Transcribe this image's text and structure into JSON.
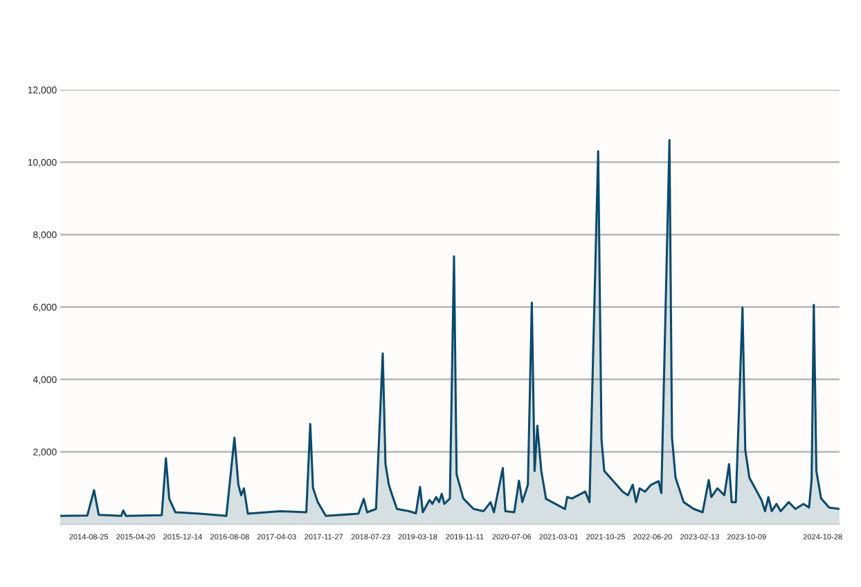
{
  "chart_data": {
    "type": "area",
    "color": "#0b4a6b",
    "grid": "y",
    "xlim": [
      "2014-04-03",
      "2025-01-21"
    ],
    "xticks": [
      "2014-08-25",
      "2015-04-20",
      "2015-12-14",
      "2016-08-08",
      "2017-04-03",
      "2017-11-27",
      "2018-07-23",
      "2019-03-18",
      "2019-11-11",
      "2020-07-06",
      "2021-03-01",
      "2021-10-25",
      "2022-06-20",
      "2023-02-13",
      "2023-10-09",
      "2024-10-28"
    ],
    "ylim": [
      0,
      12000
    ],
    "yticks": [
      {
        "value": 2000,
        "label": "2,000"
      },
      {
        "value": 4000,
        "label": "4,000"
      },
      {
        "value": 6000,
        "label": "6,000"
      },
      {
        "value": 8000,
        "label": "8,000"
      },
      {
        "value": 10000,
        "label": "10,000"
      },
      {
        "value": 12000,
        "label": "12,000"
      }
    ],
    "x": [
      "2014-04-03",
      "2014-08-18",
      "2014-09-21",
      "2014-10-15",
      "2015-02-06",
      "2015-02-16",
      "2015-03-02",
      "2015-08-30",
      "2015-09-20",
      "2015-10-07",
      "2015-11-07",
      "2016-03-06",
      "2016-07-22",
      "2016-09-01",
      "2016-09-21",
      "2016-10-05",
      "2016-10-19",
      "2016-11-08",
      "2017-04-22",
      "2017-08-31",
      "2017-09-20",
      "2017-10-04",
      "2017-10-28",
      "2017-12-08",
      "2018-05-22",
      "2018-06-18",
      "2018-07-05",
      "2018-08-19",
      "2018-09-22",
      "2018-10-06",
      "2018-10-23",
      "2018-11-09",
      "2018-12-03",
      "2019-02-03",
      "2019-03-09",
      "2019-03-30",
      "2019-04-13",
      "2019-05-17",
      "2019-05-31",
      "2019-06-20",
      "2019-07-04",
      "2019-07-18",
      "2019-07-31",
      "2019-08-28",
      "2019-09-18",
      "2019-10-01",
      "2019-11-04",
      "2019-12-26",
      "2020-02-15",
      "2020-03-21",
      "2020-04-07",
      "2020-05-22",
      "2020-06-04",
      "2020-07-19",
      "2020-08-12",
      "2020-08-29",
      "2020-09-26",
      "2020-10-16",
      "2020-10-30",
      "2020-11-13",
      "2020-12-03",
      "2020-12-27",
      "2021-04-02",
      "2021-04-13",
      "2021-05-07",
      "2021-07-14",
      "2021-08-04",
      "2021-09-17",
      "2021-10-04",
      "2021-10-18",
      "2021-11-28",
      "2022-01-19",
      "2022-02-15",
      "2022-03-11",
      "2022-03-28",
      "2022-04-15",
      "2022-05-12",
      "2022-06-12",
      "2022-07-20",
      "2022-08-03",
      "2022-09-13",
      "2022-09-26",
      "2022-10-14",
      "2022-11-24",
      "2023-01-14",
      "2023-02-28",
      "2023-03-31",
      "2023-04-13",
      "2023-05-14",
      "2023-06-18",
      "2023-07-12",
      "2023-07-25",
      "2023-08-15",
      "2023-09-18",
      "2023-10-02",
      "2023-10-23",
      "2023-12-23",
      "2024-01-10",
      "2024-01-27",
      "2024-02-13",
      "2024-03-08",
      "2024-03-29",
      "2024-05-09",
      "2024-06-12",
      "2024-07-23",
      "2024-08-20",
      "2024-09-02",
      "2024-09-13",
      "2024-09-26",
      "2024-10-20",
      "2024-11-30",
      "2025-01-21"
    ],
    "values": [
      230,
      240,
      940,
      260,
      230,
      380,
      230,
      250,
      1820,
      700,
      330,
      290,
      230,
      2390,
      1090,
      800,
      990,
      290,
      360,
      330,
      2770,
      1000,
      610,
      230,
      290,
      700,
      330,
      420,
      4720,
      1660,
      1090,
      800,
      420,
      360,
      300,
      1030,
      330,
      670,
      560,
      750,
      610,
      840,
      560,
      710,
      7400,
      1380,
      710,
      420,
      360,
      610,
      330,
      1550,
      360,
      330,
      1200,
      610,
      1090,
      6120,
      1470,
      2720,
      1470,
      700,
      420,
      750,
      710,
      900,
      610,
      10300,
      2330,
      1470,
      1220,
      900,
      800,
      1090,
      610,
      990,
      900,
      1090,
      1190,
      860,
      10610,
      2390,
      1280,
      610,
      420,
      330,
      1220,
      750,
      990,
      800,
      1660,
      610,
      610,
      5980,
      2050,
      1280,
      670,
      360,
      750,
      360,
      560,
      360,
      610,
      420,
      560,
      460,
      1240,
      6060,
      1470,
      710,
      460,
      420
    ]
  }
}
